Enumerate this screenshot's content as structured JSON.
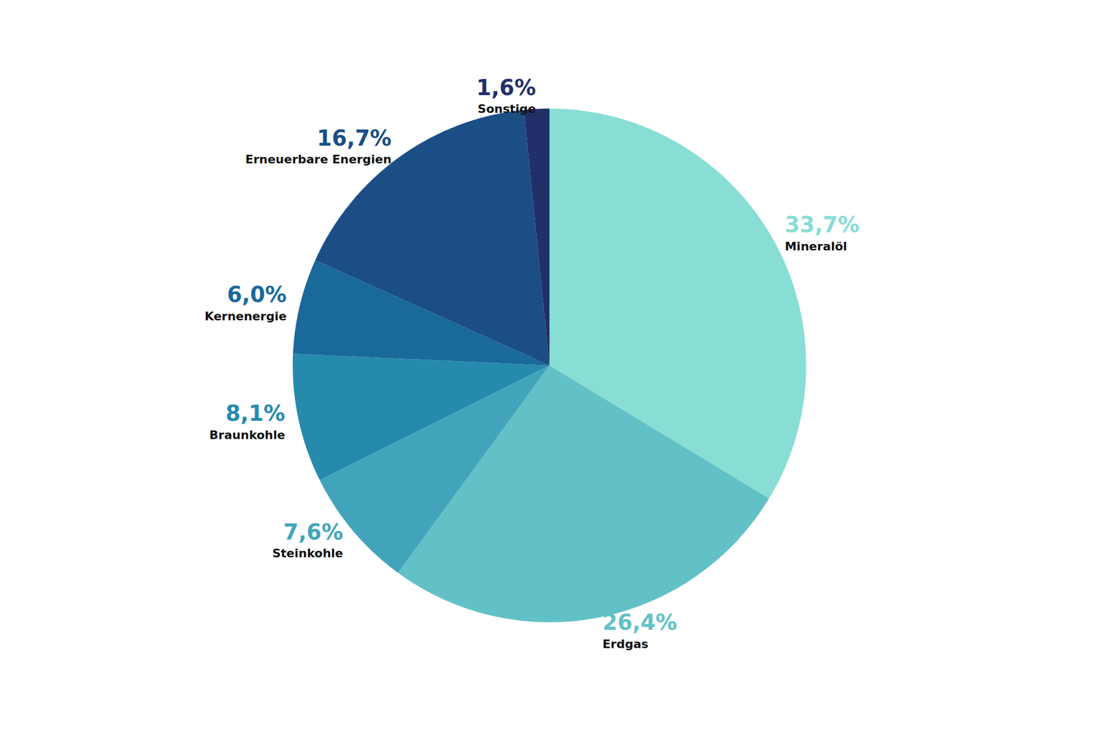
{
  "chart_data": {
    "type": "pie",
    "categories": [
      "Mineralöl",
      "Erdgas",
      "Steinkohle",
      "Braunkohle",
      "Kernenergie",
      "Erneuerbare Energien",
      "Sonstige"
    ],
    "values": [
      33.7,
      26.4,
      7.6,
      8.1,
      6.0,
      16.7,
      1.6
    ],
    "value_labels": [
      "33,7%",
      "26,4%",
      "7,6%",
      "8,1%",
      "6,0%",
      "16,7%",
      "1,6%"
    ],
    "colors": [
      "#88ded4",
      "#62c1c7",
      "#42a4bb",
      "#268aad",
      "#19699b",
      "#1b4e85",
      "#22306a"
    ],
    "data_labels": true
  }
}
